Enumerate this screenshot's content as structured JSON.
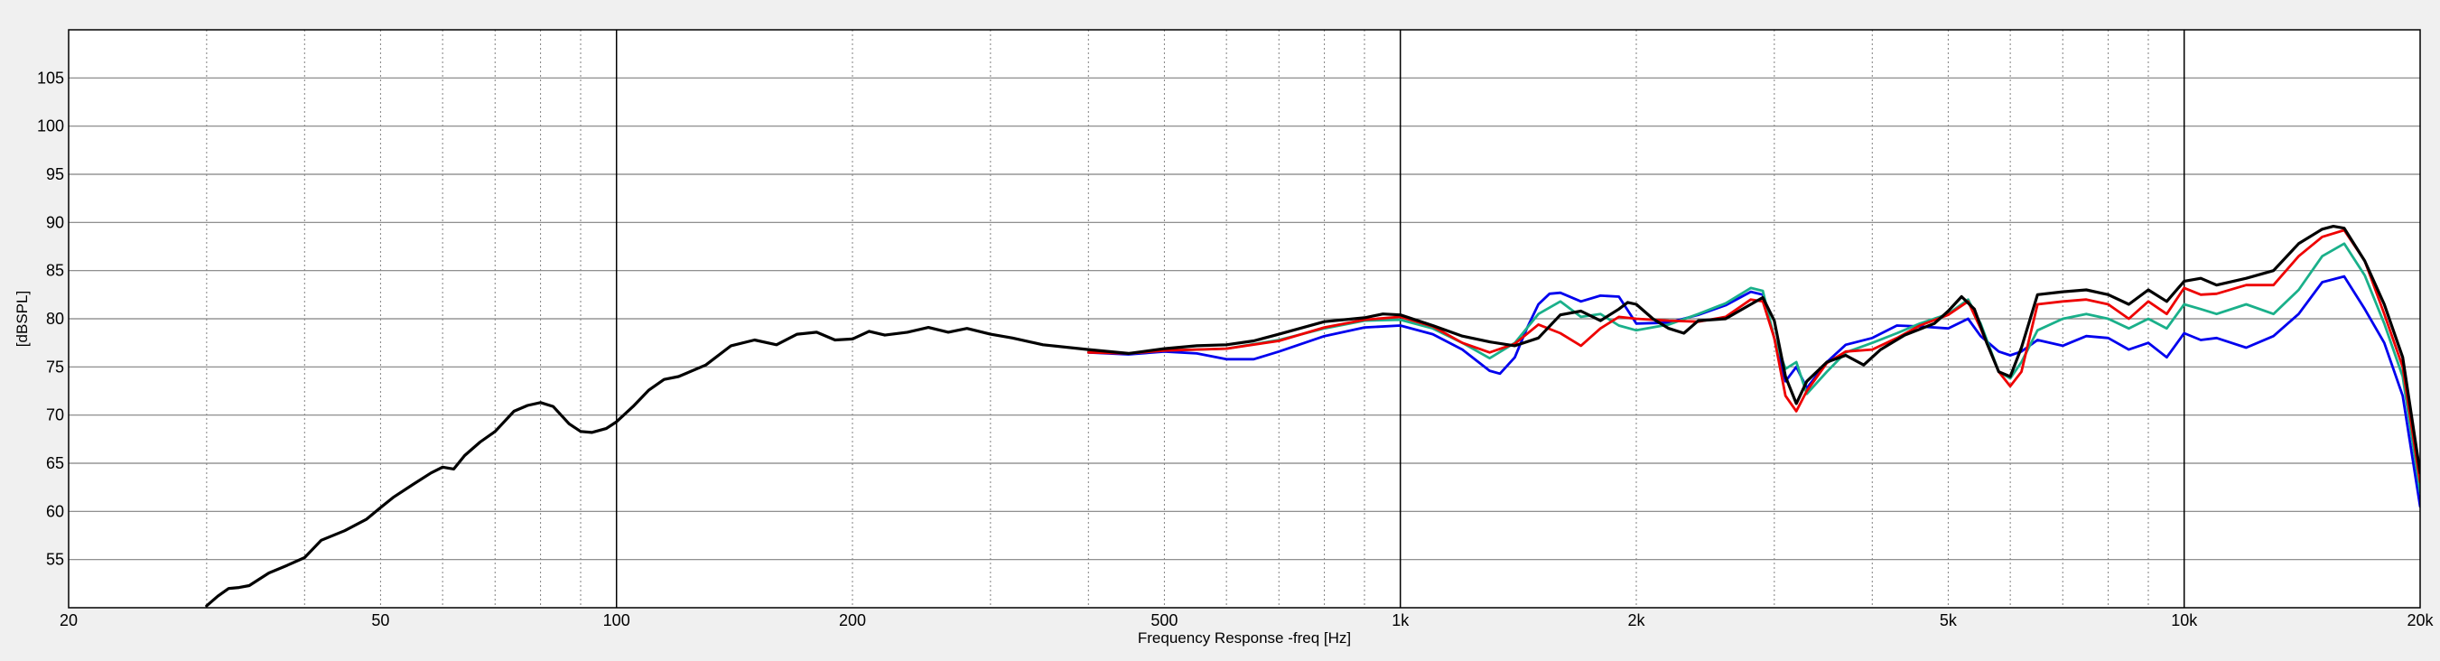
{
  "chart_data": {
    "type": "line",
    "title": "",
    "xlabel": "Frequency Response -freq [Hz]",
    "ylabel": "[dBSPL]",
    "xscale": "log",
    "xlim": [
      20,
      20000
    ],
    "ylim": [
      50,
      110
    ],
    "x_ticks": [
      {
        "value": 20,
        "label": "20"
      },
      {
        "value": 50,
        "label": "50"
      },
      {
        "value": 100,
        "label": "100"
      },
      {
        "value": 200,
        "label": "200"
      },
      {
        "value": 500,
        "label": "500"
      },
      {
        "value": 1000,
        "label": "1k"
      },
      {
        "value": 2000,
        "label": "2k"
      },
      {
        "value": 5000,
        "label": "5k"
      },
      {
        "value": 10000,
        "label": "10k"
      },
      {
        "value": 20000,
        "label": "20k"
      }
    ],
    "y_ticks": [
      {
        "value": 55,
        "label": "55"
      },
      {
        "value": 60,
        "label": "60"
      },
      {
        "value": 65,
        "label": "65"
      },
      {
        "value": 70,
        "label": "70"
      },
      {
        "value": 75,
        "label": "75"
      },
      {
        "value": 80,
        "label": "80"
      },
      {
        "value": 85,
        "label": "85"
      },
      {
        "value": 90,
        "label": "90"
      },
      {
        "value": 95,
        "label": "95"
      },
      {
        "value": 100,
        "label": "100"
      },
      {
        "value": 105,
        "label": "105"
      }
    ],
    "grid": true,
    "legend": "none",
    "series": [
      {
        "color": "#0000ee",
        "points": [
          [
            400,
            76.5
          ],
          [
            450,
            76.3
          ],
          [
            500,
            76.6
          ],
          [
            550,
            76.4
          ],
          [
            600,
            75.8
          ],
          [
            650,
            75.8
          ],
          [
            700,
            76.6
          ],
          [
            800,
            78.2
          ],
          [
            900,
            79.1
          ],
          [
            1000,
            79.3
          ],
          [
            1100,
            78.4
          ],
          [
            1200,
            76.8
          ],
          [
            1300,
            74.6
          ],
          [
            1340,
            74.3
          ],
          [
            1400,
            76.0
          ],
          [
            1450,
            79.0
          ],
          [
            1500,
            81.5
          ],
          [
            1550,
            82.6
          ],
          [
            1600,
            82.7
          ],
          [
            1700,
            81.8
          ],
          [
            1800,
            82.4
          ],
          [
            1900,
            82.3
          ],
          [
            2000,
            79.5
          ],
          [
            2200,
            79.6
          ],
          [
            2400,
            80.4
          ],
          [
            2600,
            81.4
          ],
          [
            2800,
            82.8
          ],
          [
            2900,
            82.5
          ],
          [
            3000,
            78.0
          ],
          [
            3100,
            73.5
          ],
          [
            3200,
            75.0
          ],
          [
            3300,
            72.8
          ],
          [
            3500,
            75.5
          ],
          [
            3700,
            77.3
          ],
          [
            4000,
            78.0
          ],
          [
            4300,
            79.3
          ],
          [
            4600,
            79.2
          ],
          [
            5000,
            79.0
          ],
          [
            5300,
            80.0
          ],
          [
            5500,
            78.2
          ],
          [
            5800,
            76.6
          ],
          [
            6000,
            76.2
          ],
          [
            6200,
            76.6
          ],
          [
            6500,
            77.8
          ],
          [
            7000,
            77.2
          ],
          [
            7500,
            78.2
          ],
          [
            8000,
            78.0
          ],
          [
            8500,
            76.8
          ],
          [
            9000,
            77.5
          ],
          [
            9500,
            76.0
          ],
          [
            10000,
            78.5
          ],
          [
            10500,
            77.8
          ],
          [
            11000,
            78.0
          ],
          [
            12000,
            77.0
          ],
          [
            13000,
            78.2
          ],
          [
            14000,
            80.5
          ],
          [
            15000,
            83.8
          ],
          [
            16000,
            84.4
          ],
          [
            17000,
            81.0
          ],
          [
            18000,
            77.5
          ],
          [
            19000,
            72.0
          ],
          [
            20000,
            60.5
          ]
        ]
      },
      {
        "color": "#1ab08a",
        "points": [
          [
            400,
            76.6
          ],
          [
            450,
            76.4
          ],
          [
            500,
            76.7
          ],
          [
            550,
            76.8
          ],
          [
            600,
            76.9
          ],
          [
            700,
            77.8
          ],
          [
            800,
            79.0
          ],
          [
            900,
            79.8
          ],
          [
            1000,
            79.9
          ],
          [
            1100,
            79.0
          ],
          [
            1200,
            77.5
          ],
          [
            1300,
            75.9
          ],
          [
            1400,
            77.5
          ],
          [
            1500,
            80.5
          ],
          [
            1600,
            81.8
          ],
          [
            1700,
            80.2
          ],
          [
            1800,
            80.5
          ],
          [
            1900,
            79.3
          ],
          [
            2000,
            78.8
          ],
          [
            2200,
            79.4
          ],
          [
            2400,
            80.5
          ],
          [
            2600,
            81.6
          ],
          [
            2800,
            83.2
          ],
          [
            2900,
            82.9
          ],
          [
            3000,
            78.0
          ],
          [
            3100,
            74.8
          ],
          [
            3200,
            75.5
          ],
          [
            3300,
            72.2
          ],
          [
            3500,
            74.5
          ],
          [
            3700,
            76.5
          ],
          [
            4000,
            77.5
          ],
          [
            4300,
            78.5
          ],
          [
            4600,
            79.5
          ],
          [
            5000,
            80.5
          ],
          [
            5300,
            82.0
          ],
          [
            5500,
            79.5
          ],
          [
            5800,
            74.5
          ],
          [
            6000,
            73.8
          ],
          [
            6200,
            75.5
          ],
          [
            6500,
            78.8
          ],
          [
            7000,
            80.0
          ],
          [
            7500,
            80.5
          ],
          [
            8000,
            80.0
          ],
          [
            8500,
            79.0
          ],
          [
            9000,
            80.0
          ],
          [
            9500,
            79.0
          ],
          [
            10000,
            81.5
          ],
          [
            10500,
            81.0
          ],
          [
            11000,
            80.5
          ],
          [
            12000,
            81.5
          ],
          [
            13000,
            80.5
          ],
          [
            14000,
            83.0
          ],
          [
            15000,
            86.5
          ],
          [
            16000,
            87.8
          ],
          [
            17000,
            84.5
          ],
          [
            18000,
            79.5
          ],
          [
            19000,
            74.0
          ],
          [
            20000,
            62.0
          ]
        ]
      },
      {
        "color": "#ee0000",
        "points": [
          [
            400,
            76.5
          ],
          [
            450,
            76.4
          ],
          [
            500,
            76.7
          ],
          [
            550,
            76.8
          ],
          [
            600,
            76.9
          ],
          [
            700,
            77.7
          ],
          [
            800,
            79.1
          ],
          [
            900,
            79.9
          ],
          [
            1000,
            80.2
          ],
          [
            1100,
            79.2
          ],
          [
            1200,
            77.5
          ],
          [
            1300,
            76.5
          ],
          [
            1400,
            77.4
          ],
          [
            1500,
            79.4
          ],
          [
            1600,
            78.5
          ],
          [
            1700,
            77.2
          ],
          [
            1800,
            79.0
          ],
          [
            1900,
            80.2
          ],
          [
            2000,
            80.0
          ],
          [
            2200,
            79.8
          ],
          [
            2400,
            79.7
          ],
          [
            2600,
            80.2
          ],
          [
            2800,
            82.0
          ],
          [
            2900,
            81.8
          ],
          [
            3000,
            78.0
          ],
          [
            3100,
            72.0
          ],
          [
            3200,
            70.4
          ],
          [
            3300,
            72.5
          ],
          [
            3500,
            75.4
          ],
          [
            3700,
            76.6
          ],
          [
            4000,
            76.8
          ],
          [
            4300,
            78.0
          ],
          [
            4600,
            79.3
          ],
          [
            5000,
            80.4
          ],
          [
            5300,
            81.8
          ],
          [
            5500,
            79.0
          ],
          [
            5800,
            74.5
          ],
          [
            6000,
            73.0
          ],
          [
            6200,
            74.5
          ],
          [
            6500,
            81.5
          ],
          [
            7000,
            81.8
          ],
          [
            7500,
            82.0
          ],
          [
            8000,
            81.5
          ],
          [
            8500,
            80.0
          ],
          [
            9000,
            81.8
          ],
          [
            9500,
            80.5
          ],
          [
            10000,
            83.2
          ],
          [
            10500,
            82.5
          ],
          [
            11000,
            82.6
          ],
          [
            12000,
            83.5
          ],
          [
            13000,
            83.5
          ],
          [
            14000,
            86.5
          ],
          [
            15000,
            88.5
          ],
          [
            16000,
            89.2
          ],
          [
            17000,
            86.0
          ],
          [
            18000,
            80.5
          ],
          [
            19000,
            75.0
          ],
          [
            20000,
            63.0
          ]
        ]
      },
      {
        "color": "#000000",
        "points": [
          [
            30,
            50.2
          ],
          [
            31,
            51.2
          ],
          [
            32,
            52.0
          ],
          [
            33,
            52.1
          ],
          [
            34,
            52.3
          ],
          [
            36,
            53.6
          ],
          [
            38,
            54.4
          ],
          [
            40,
            55.2
          ],
          [
            42,
            57.0
          ],
          [
            45,
            58.0
          ],
          [
            48,
            59.2
          ],
          [
            50,
            60.4
          ],
          [
            52,
            61.5
          ],
          [
            55,
            62.8
          ],
          [
            58,
            64.0
          ],
          [
            60,
            64.6
          ],
          [
            62,
            64.4
          ],
          [
            64,
            65.8
          ],
          [
            67,
            67.2
          ],
          [
            70,
            68.3
          ],
          [
            74,
            70.4
          ],
          [
            77,
            71.0
          ],
          [
            80,
            71.3
          ],
          [
            83,
            70.9
          ],
          [
            87,
            69.1
          ],
          [
            90,
            68.3
          ],
          [
            93,
            68.2
          ],
          [
            97,
            68.6
          ],
          [
            100,
            69.3
          ],
          [
            105,
            70.9
          ],
          [
            110,
            72.6
          ],
          [
            115,
            73.7
          ],
          [
            120,
            74.0
          ],
          [
            130,
            75.2
          ],
          [
            140,
            77.2
          ],
          [
            150,
            77.8
          ],
          [
            160,
            77.3
          ],
          [
            170,
            78.4
          ],
          [
            180,
            78.6
          ],
          [
            190,
            77.8
          ],
          [
            200,
            77.9
          ],
          [
            210,
            78.7
          ],
          [
            220,
            78.3
          ],
          [
            235,
            78.6
          ],
          [
            250,
            79.1
          ],
          [
            265,
            78.6
          ],
          [
            280,
            79.0
          ],
          [
            300,
            78.4
          ],
          [
            320,
            78.0
          ],
          [
            350,
            77.3
          ],
          [
            400,
            76.8
          ],
          [
            450,
            76.4
          ],
          [
            500,
            76.9
          ],
          [
            550,
            77.2
          ],
          [
            600,
            77.3
          ],
          [
            650,
            77.7
          ],
          [
            700,
            78.4
          ],
          [
            800,
            79.7
          ],
          [
            900,
            80.1
          ],
          [
            950,
            80.5
          ],
          [
            1000,
            80.4
          ],
          [
            1100,
            79.3
          ],
          [
            1200,
            78.2
          ],
          [
            1300,
            77.6
          ],
          [
            1400,
            77.2
          ],
          [
            1500,
            78.0
          ],
          [
            1600,
            80.4
          ],
          [
            1700,
            80.8
          ],
          [
            1800,
            79.8
          ],
          [
            1900,
            81.0
          ],
          [
            1950,
            81.7
          ],
          [
            2000,
            81.5
          ],
          [
            2100,
            80.0
          ],
          [
            2200,
            79.0
          ],
          [
            2300,
            78.5
          ],
          [
            2400,
            79.8
          ],
          [
            2600,
            80.0
          ],
          [
            2800,
            81.5
          ],
          [
            2900,
            82.2
          ],
          [
            3000,
            79.8
          ],
          [
            3100,
            74.0
          ],
          [
            3200,
            71.2
          ],
          [
            3300,
            73.5
          ],
          [
            3500,
            75.5
          ],
          [
            3700,
            76.2
          ],
          [
            3900,
            75.2
          ],
          [
            4100,
            76.8
          ],
          [
            4400,
            78.3
          ],
          [
            4800,
            79.5
          ],
          [
            5000,
            80.8
          ],
          [
            5200,
            82.3
          ],
          [
            5400,
            81.0
          ],
          [
            5600,
            77.5
          ],
          [
            5800,
            74.5
          ],
          [
            6000,
            74.0
          ],
          [
            6200,
            77.0
          ],
          [
            6500,
            82.5
          ],
          [
            7000,
            82.8
          ],
          [
            7500,
            83.0
          ],
          [
            8000,
            82.5
          ],
          [
            8500,
            81.5
          ],
          [
            9000,
            83.0
          ],
          [
            9500,
            81.8
          ],
          [
            10000,
            83.9
          ],
          [
            10500,
            84.2
          ],
          [
            11000,
            83.5
          ],
          [
            12000,
            84.2
          ],
          [
            13000,
            85.0
          ],
          [
            14000,
            87.8
          ],
          [
            15000,
            89.3
          ],
          [
            15500,
            89.6
          ],
          [
            16000,
            89.4
          ],
          [
            17000,
            86.0
          ],
          [
            18000,
            81.5
          ],
          [
            19000,
            76.0
          ],
          [
            20000,
            64.0
          ]
        ]
      }
    ]
  }
}
